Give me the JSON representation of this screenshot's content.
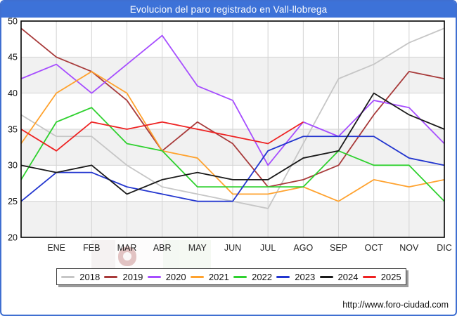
{
  "window": {
    "title": "Evolucion del paro registrado en Vall-llobrega"
  },
  "footer": {
    "url": "http://www.foro-ciudad.com"
  },
  "chart_data": {
    "type": "line",
    "title": "Evolucion del paro registrado en Vall-llobrega",
    "x_labels": [
      "ENE",
      "FEB",
      "MAR",
      "ABR",
      "MAY",
      "JUN",
      "JUL",
      "AGO",
      "SEP",
      "OCT",
      "NOV",
      "DIC"
    ],
    "x_note": "Each series has a leading extra point at the left axis (previous year's December value) before ENE.",
    "ylim": [
      20,
      50
    ],
    "y_ticks": [
      20,
      25,
      30,
      35,
      40,
      45,
      50
    ],
    "shaded_bands": [
      [
        20,
        25
      ],
      [
        30,
        35
      ],
      [
        40,
        45
      ]
    ],
    "grid": true,
    "legend_position": "bottom",
    "series": [
      {
        "name": "2018",
        "color": "#c6c6c6",
        "values": [
          37,
          34,
          34,
          30,
          27,
          26,
          25,
          24,
          33,
          42,
          44,
          47,
          49
        ]
      },
      {
        "name": "2019",
        "color": "#a83a3a",
        "values": [
          49,
          45,
          43,
          39,
          32,
          36,
          33,
          27,
          28,
          30,
          37,
          43,
          42
        ]
      },
      {
        "name": "2020",
        "color": "#a64dff",
        "values": [
          42,
          44,
          40,
          44,
          48,
          41,
          39,
          30,
          36,
          34,
          39,
          38,
          33
        ]
      },
      {
        "name": "2021",
        "color": "#ffa22e",
        "values": [
          33,
          40,
          43,
          40,
          32,
          31,
          26,
          26,
          27,
          25,
          28,
          27,
          28
        ]
      },
      {
        "name": "2022",
        "color": "#2fd12f",
        "values": [
          28,
          36,
          38,
          33,
          32,
          27,
          27,
          27,
          27,
          32,
          30,
          30,
          25
        ]
      },
      {
        "name": "2023",
        "color": "#2336cf",
        "values": [
          25,
          29,
          29,
          27,
          26,
          25,
          25,
          32,
          34,
          34,
          34,
          31,
          30
        ]
      },
      {
        "name": "2024",
        "color": "#1a1a1a",
        "values": [
          30,
          29,
          30,
          26,
          28,
          29,
          28,
          28,
          31,
          32,
          40,
          37,
          35
        ]
      },
      {
        "name": "2025",
        "color": "#ee2222",
        "values": [
          35,
          32,
          36,
          35,
          36,
          35,
          34,
          33,
          36
        ]
      }
    ]
  }
}
